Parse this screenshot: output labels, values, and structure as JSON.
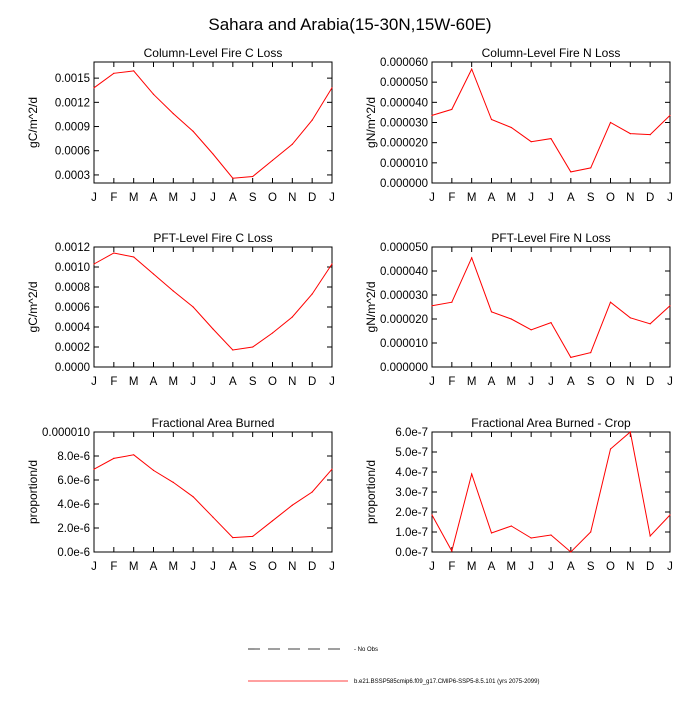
{
  "page": {
    "title": "Sahara and Arabia(15-30N,15W-60E)",
    "legend": [
      {
        "label": "No Obs",
        "color": "#000000",
        "style": "dashed"
      },
      {
        "label": "b.e21.BSSP585cmip6.f09_g17.CMIP6-SSP5-8.5.101 (yrs 2075-2099)",
        "color": "#ff0000",
        "style": "solid"
      }
    ]
  },
  "chart_data": [
    {
      "type": "line",
      "title": "Column-Level Fire C Loss",
      "ylabel": "gC/m^2/d",
      "categories": [
        "J",
        "F",
        "M",
        "A",
        "M",
        "J",
        "J",
        "A",
        "S",
        "O",
        "N",
        "D",
        "J"
      ],
      "ylim": [
        0.0002,
        0.0017
      ],
      "yticks": [
        0.0003,
        0.0006,
        0.0009,
        0.0012,
        0.0015
      ],
      "ytick_labels": [
        "0.0003",
        "0.0006",
        "0.0009",
        "0.0012",
        "0.0015"
      ],
      "series": [
        {
          "color": "#ff0000",
          "values": [
            0.00138,
            0.00156,
            0.00159,
            0.0013,
            0.00106,
            0.00084,
            0.00056,
            0.00026,
            0.00028,
            0.00048,
            0.00068,
            0.00098,
            0.00138
          ]
        }
      ]
    },
    {
      "type": "line",
      "title": "Column-Level Fire N Loss",
      "ylabel": "gN/m^2/d",
      "categories": [
        "J",
        "F",
        "M",
        "A",
        "M",
        "J",
        "J",
        "A",
        "S",
        "O",
        "N",
        "D",
        "J"
      ],
      "ylim": [
        0.0,
        6e-05
      ],
      "yticks": [
        0.0,
        1e-05,
        2e-05,
        3e-05,
        4e-05,
        5e-05,
        6e-05
      ],
      "ytick_labels": [
        "0.000000",
        "0.000010",
        "0.000020",
        "0.000030",
        "0.000040",
        "0.000050",
        "0.000060"
      ],
      "series": [
        {
          "color": "#ff0000",
          "values": [
            3.35e-05,
            3.65e-05,
            5.65e-05,
            3.15e-05,
            2.75e-05,
            2.05e-05,
            2.2e-05,
            5.5e-06,
            7.5e-06,
            3e-05,
            2.45e-05,
            2.4e-05,
            3.35e-05
          ]
        }
      ]
    },
    {
      "type": "line",
      "title": "PFT-Level Fire C Loss",
      "ylabel": "gC/m^2/d",
      "categories": [
        "J",
        "F",
        "M",
        "A",
        "M",
        "J",
        "J",
        "A",
        "S",
        "O",
        "N",
        "D",
        "J"
      ],
      "ylim": [
        0.0,
        0.0012
      ],
      "yticks": [
        0.0,
        0.0002,
        0.0004,
        0.0006,
        0.0008,
        0.001,
        0.0012
      ],
      "ytick_labels": [
        "0.0000",
        "0.0002",
        "0.0004",
        "0.0006",
        "0.0008",
        "0.0010",
        "0.0012"
      ],
      "series": [
        {
          "color": "#ff0000",
          "values": [
            0.00103,
            0.00114,
            0.0011,
            0.00093,
            0.00076,
            0.0006,
            0.00038,
            0.00017,
            0.0002,
            0.00034,
            0.0005,
            0.00073,
            0.00103
          ]
        }
      ]
    },
    {
      "type": "line",
      "title": "PFT-Level Fire N Loss",
      "ylabel": "gN/m^2/d",
      "categories": [
        "J",
        "F",
        "M",
        "A",
        "M",
        "J",
        "J",
        "A",
        "S",
        "O",
        "N",
        "D",
        "J"
      ],
      "ylim": [
        0.0,
        5e-05
      ],
      "yticks": [
        0.0,
        1e-05,
        2e-05,
        3e-05,
        4e-05,
        5e-05
      ],
      "ytick_labels": [
        "0.000000",
        "0.000010",
        "0.000020",
        "0.000030",
        "0.000040",
        "0.000050"
      ],
      "series": [
        {
          "color": "#ff0000",
          "values": [
            2.55e-05,
            2.7e-05,
            4.55e-05,
            2.3e-05,
            2e-05,
            1.55e-05,
            1.85e-05,
            4e-06,
            6e-06,
            2.7e-05,
            2.05e-05,
            1.8e-05,
            2.55e-05
          ]
        }
      ]
    },
    {
      "type": "line",
      "title": "Fractional Area Burned",
      "ylabel": "proportion/d",
      "categories": [
        "J",
        "F",
        "M",
        "A",
        "M",
        "J",
        "J",
        "A",
        "S",
        "O",
        "N",
        "D",
        "J"
      ],
      "ylim": [
        0.0,
        1e-05
      ],
      "yticks": [
        0.0,
        2e-06,
        4e-06,
        6e-06,
        8e-06,
        1e-05
      ],
      "ytick_labels": [
        "0.0e-6",
        "2.0e-6",
        "4.0e-6",
        "6.0e-6",
        "8.0e-6",
        "0.000010"
      ],
      "series": [
        {
          "color": "#ff0000",
          "values": [
            6.9e-06,
            7.8e-06,
            8.1e-06,
            6.8e-06,
            5.8e-06,
            4.6e-06,
            2.9e-06,
            1.2e-06,
            1.3e-06,
            2.6e-06,
            3.9e-06,
            5e-06,
            6.9e-06
          ]
        }
      ]
    },
    {
      "type": "line",
      "title": "Fractional Area Burned - Crop",
      "ylabel": "proportion/d",
      "categories": [
        "J",
        "F",
        "M",
        "A",
        "M",
        "J",
        "J",
        "A",
        "S",
        "O",
        "N",
        "D",
        "J"
      ],
      "ylim": [
        0.0,
        6e-07
      ],
      "yticks": [
        0.0,
        1e-07,
        2e-07,
        3e-07,
        4e-07,
        5e-07,
        6e-07
      ],
      "ytick_labels": [
        "0.0e-7",
        "1.0e-7",
        "2.0e-7",
        "3.0e-7",
        "4.0e-7",
        "5.0e-7",
        "6.0e-7"
      ],
      "series": [
        {
          "color": "#ff0000",
          "values": [
            1.85e-07,
            5e-09,
            3.9e-07,
            9.5e-08,
            1.3e-07,
            7e-08,
            8.5e-08,
            0.0,
            1e-07,
            5.15e-07,
            6e-07,
            8e-08,
            1.85e-07
          ]
        }
      ]
    }
  ]
}
